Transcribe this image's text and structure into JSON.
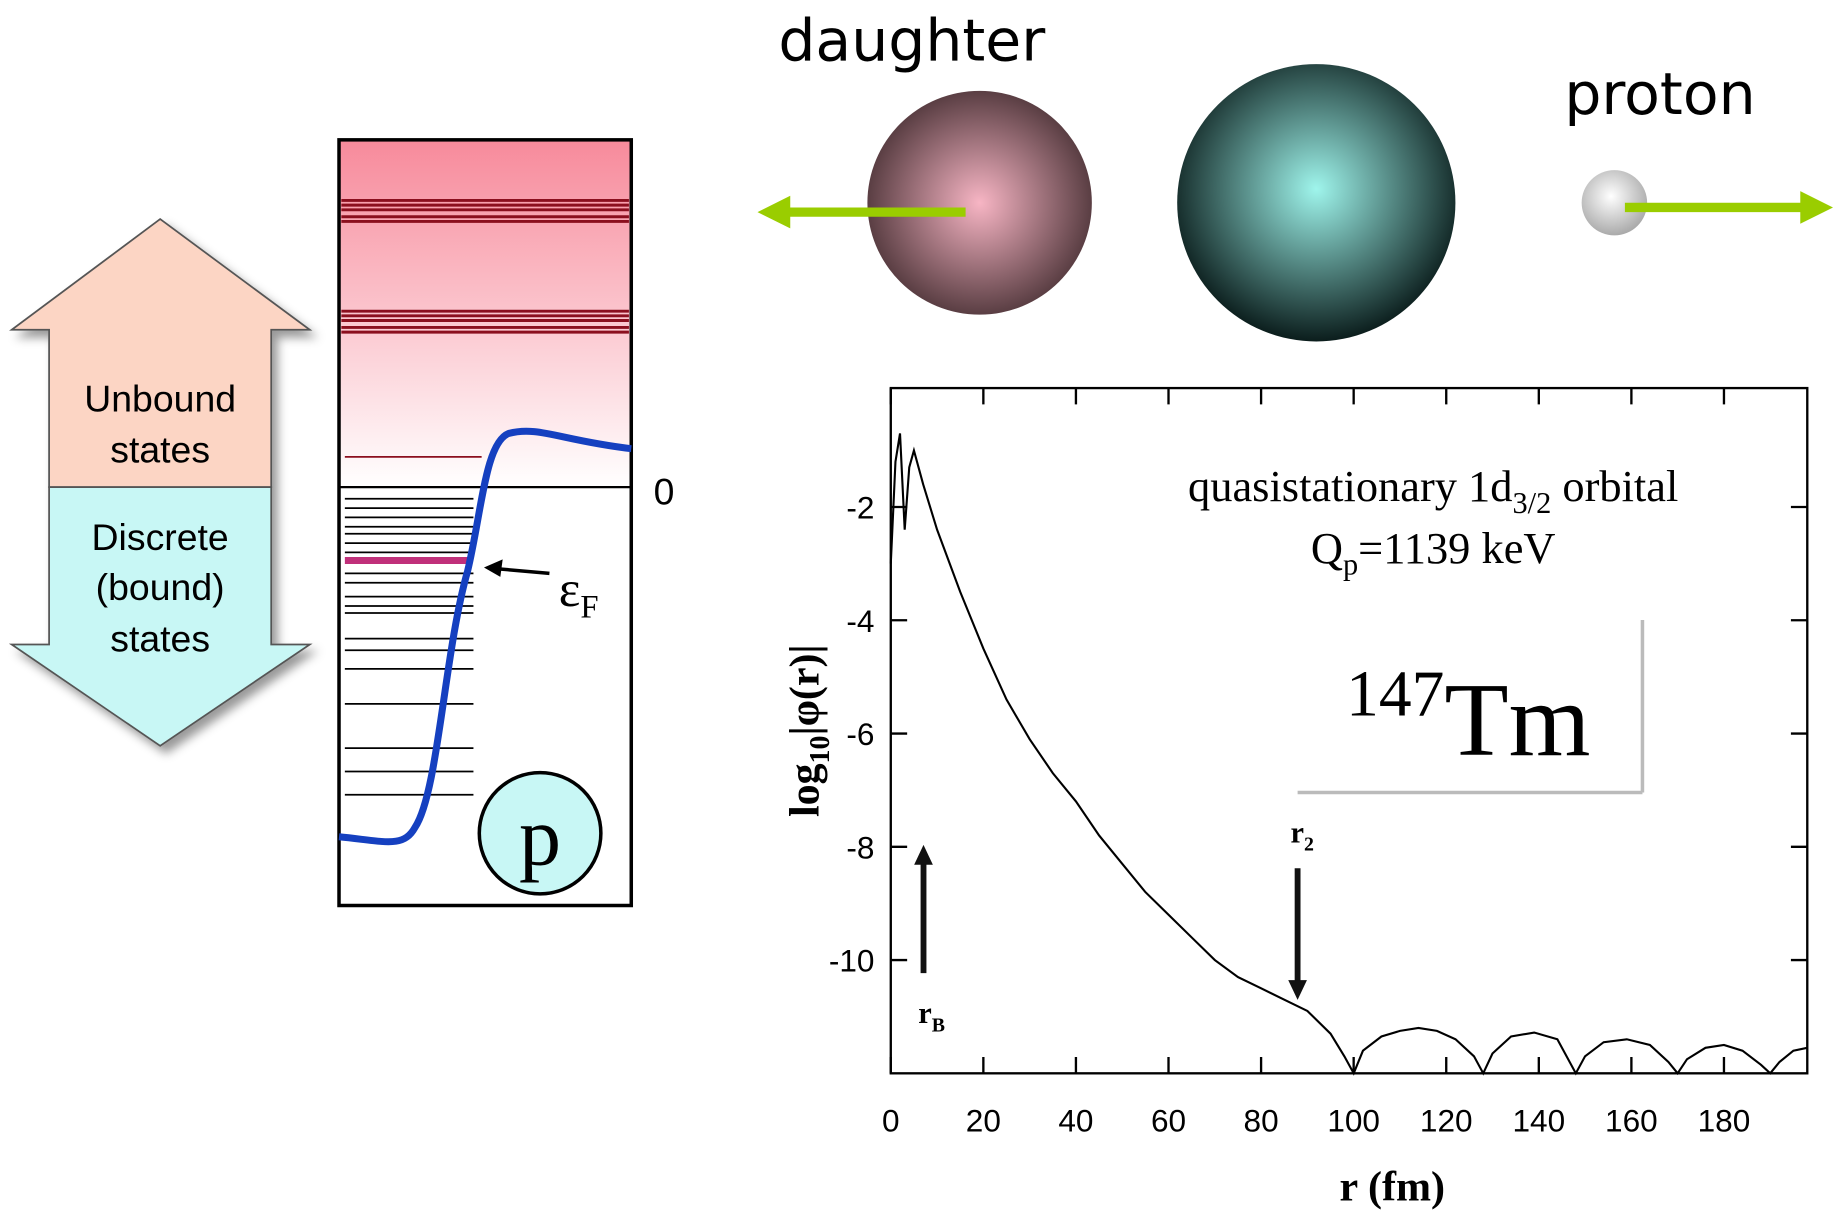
{
  "diagram": {
    "daughter": "daughter",
    "proton": "proton",
    "unbound": [
      "Unbound",
      "states"
    ],
    "bound": [
      "Discrete",
      "(bound)",
      "states"
    ],
    "zero": "0",
    "fermi": {
      "symbol": "ε",
      "sub": "F"
    },
    "particle": "p"
  },
  "chart_data": {
    "type": "line",
    "color": "#000000",
    "x": [
      0,
      1,
      2,
      3,
      4,
      5,
      7,
      10,
      15,
      20,
      25,
      30,
      35,
      40,
      45,
      50,
      55,
      60,
      65,
      70,
      75,
      80,
      85,
      90,
      95,
      98,
      100,
      102,
      106,
      110,
      114,
      118,
      122,
      126,
      128,
      130,
      134,
      139,
      144,
      148,
      150,
      154,
      159,
      164,
      168,
      170,
      172,
      176,
      180,
      184,
      188,
      190,
      192,
      195,
      198
    ],
    "values": [
      -3,
      -1.2,
      -0.7,
      -2.4,
      -1.3,
      -1.0,
      -1.6,
      -2.4,
      -3.5,
      -4.5,
      -5.4,
      -6.1,
      -6.7,
      -7.2,
      -7.8,
      -8.3,
      -8.8,
      -9.2,
      -9.6,
      -10.0,
      -10.3,
      -10.5,
      -10.7,
      -10.9,
      -11.3,
      -11.7,
      -12,
      -11.6,
      -11.35,
      -11.25,
      -11.2,
      -11.25,
      -11.4,
      -11.7,
      -12,
      -11.65,
      -11.35,
      -11.28,
      -11.4,
      -12,
      -11.7,
      -11.45,
      -11.4,
      -11.5,
      -11.8,
      -12,
      -11.75,
      -11.55,
      -11.5,
      -11.6,
      -11.85,
      -12,
      -11.8,
      -11.6,
      -11.55
    ],
    "xlim": [
      0,
      198
    ],
    "ylim": [
      -12,
      0.1
    ],
    "xticks": [
      0,
      20,
      40,
      60,
      80,
      100,
      120,
      140,
      160,
      180
    ],
    "yticks": [
      -2,
      -4,
      -6,
      -8,
      -10
    ],
    "xlabel": "r (fm)",
    "ylabel": {
      "main": "log",
      "sub": "10",
      "tail": "|φ(r)|"
    },
    "annotations": {
      "orbital": {
        "text": "quasistationary 1d",
        "sub": "3/2",
        "tail": " orbital"
      },
      "q": {
        "text": "Q",
        "sub": "p",
        "tail": "=1139 keV"
      },
      "nucleus": {
        "sup": "147",
        "text": "Tm"
      },
      "rB": {
        "text": "r",
        "sub": "B"
      },
      "r2": {
        "text": "r",
        "sub": "2"
      }
    }
  }
}
